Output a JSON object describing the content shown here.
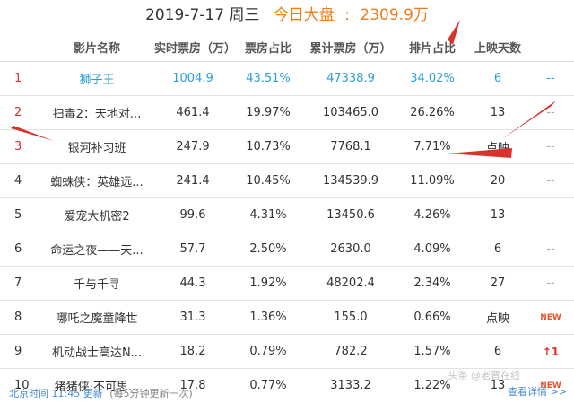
{
  "header": {
    "date": "2019-7-17 周三",
    "label": "今日大盘",
    "sep": ":",
    "total": "2309.9万"
  },
  "table": {
    "columns": [
      "",
      "影片名称",
      "实时票房（万）",
      "票房占比",
      "累计票房（万）",
      "排片占比",
      "上映天数",
      ""
    ],
    "rows": [
      {
        "rank": "1",
        "name": "狮子王",
        "box": "1004.9",
        "share": "43.51%",
        "total": "47338.9",
        "screen": "34.02%",
        "days": "6",
        "extra": "--"
      },
      {
        "rank": "2",
        "name": "扫毒2：天地对...",
        "box": "461.4",
        "share": "19.97%",
        "total": "103465.0",
        "screen": "26.26%",
        "days": "13",
        "extra": "--"
      },
      {
        "rank": "3",
        "name": "银河补习班",
        "box": "247.9",
        "share": "10.73%",
        "total": "7768.1",
        "screen": "7.71%",
        "days": "点映",
        "extra": "--"
      },
      {
        "rank": "4",
        "name": "蜘蛛侠：英雄远...",
        "box": "241.4",
        "share": "10.45%",
        "total": "134539.9",
        "screen": "11.09%",
        "days": "20",
        "extra": "--"
      },
      {
        "rank": "5",
        "name": "爱宠大机密2",
        "box": "99.6",
        "share": "4.31%",
        "total": "13450.6",
        "screen": "4.26%",
        "days": "13",
        "extra": "--"
      },
      {
        "rank": "6",
        "name": "命运之夜——天...",
        "box": "57.7",
        "share": "2.50%",
        "total": "2630.0",
        "screen": "4.09%",
        "days": "6",
        "extra": "--"
      },
      {
        "rank": "7",
        "name": "千与千寻",
        "box": "44.3",
        "share": "1.92%",
        "total": "48202.4",
        "screen": "2.34%",
        "days": "27",
        "extra": "--"
      },
      {
        "rank": "8",
        "name": "哪吒之魔童降世",
        "box": "31.3",
        "share": "1.36%",
        "total": "155.0",
        "screen": "0.66%",
        "days": "点映",
        "extra": "NEW"
      },
      {
        "rank": "9",
        "name": "机动战士高达N...",
        "box": "18.2",
        "share": "0.79%",
        "total": "782.2",
        "screen": "1.57%",
        "days": "6",
        "extra": "↑1"
      },
      {
        "rank": "10",
        "name": "猪猪侠·不可思...",
        "box": "17.8",
        "share": "0.77%",
        "total": "3133.2",
        "screen": "1.22%",
        "days": "13",
        "extra": "NEW"
      }
    ]
  },
  "footer": {
    "time_label": "北京时间 11:45 更新",
    "note": "(每5分钟更新一次)",
    "more": "查看详情 >>"
  },
  "watermark": "头条 @老晋在线",
  "colors": {
    "accent_orange": "#f07c1a",
    "rank_red": "#d9322b",
    "highlight_blue": "#2a9fd6",
    "link_blue": "#4a8ccf"
  }
}
